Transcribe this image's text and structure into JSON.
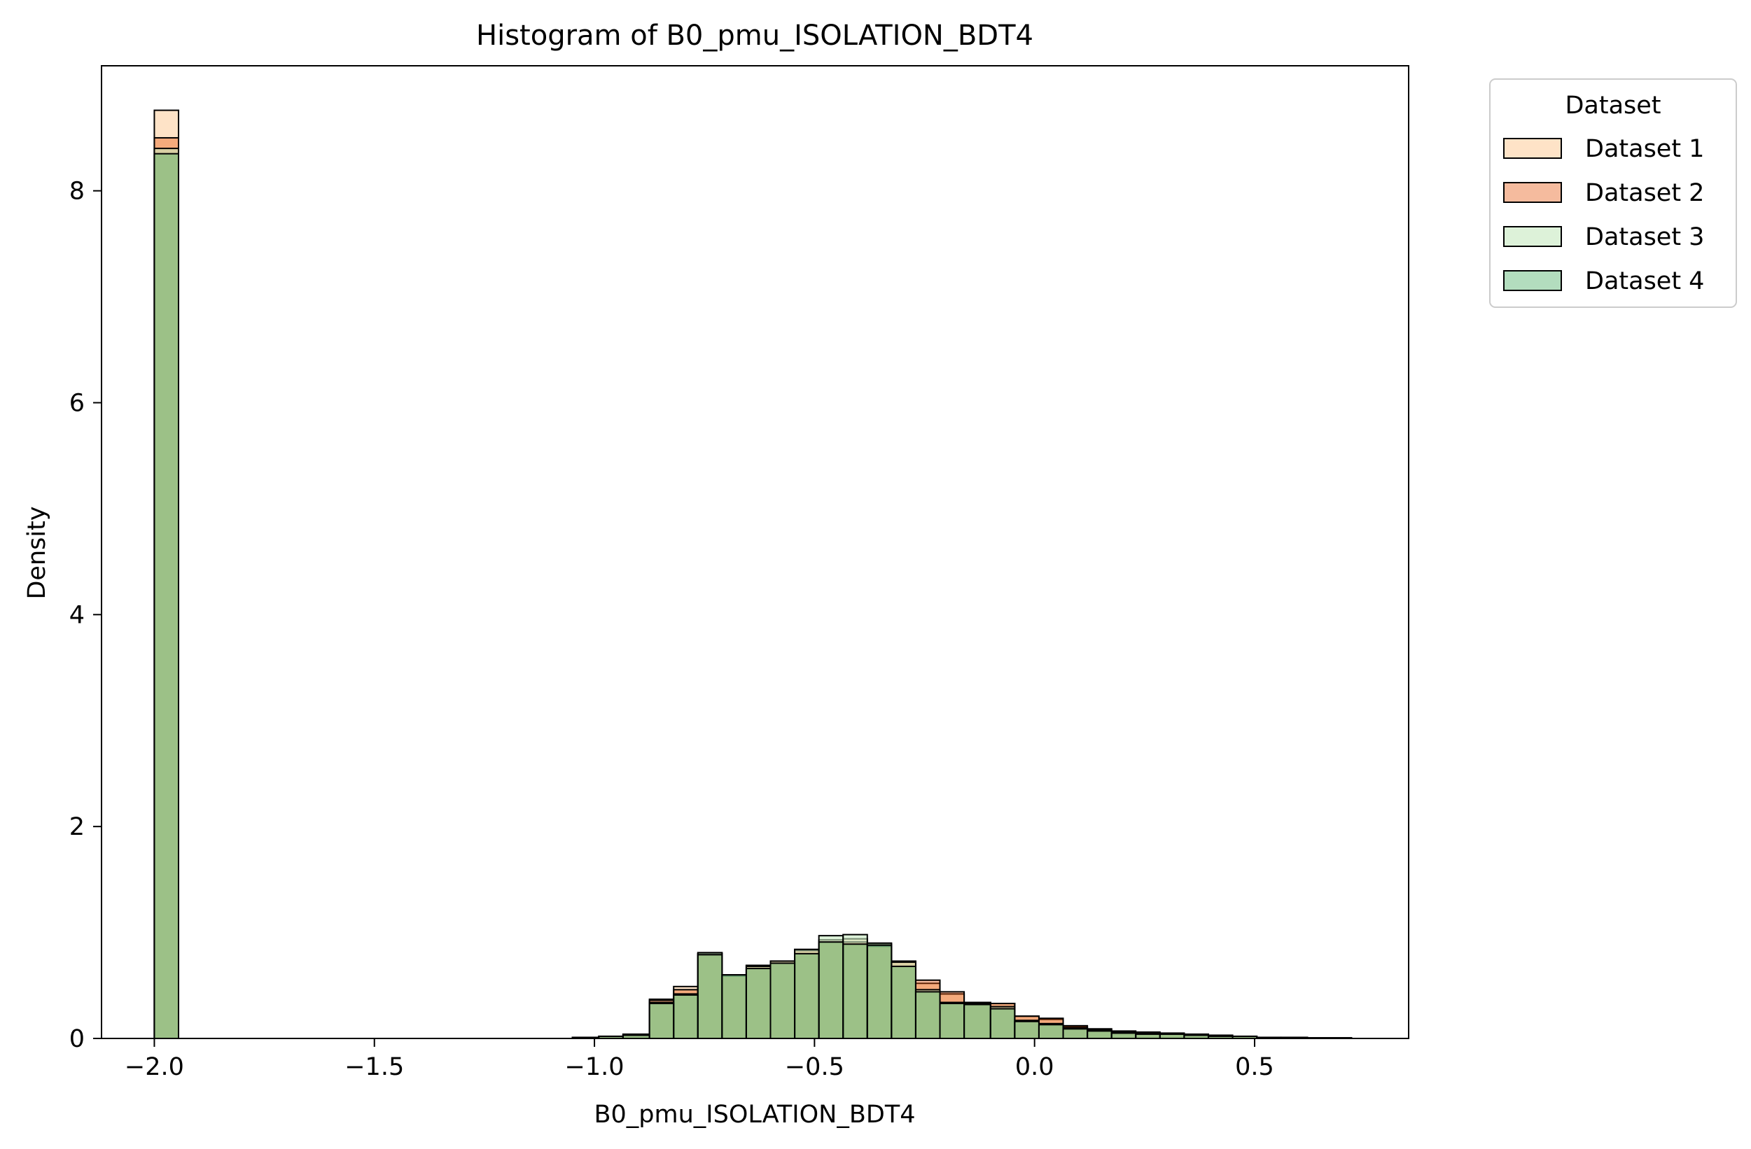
{
  "chart_data": {
    "type": "bar",
    "title": "Histogram of B0_pmu_ISOLATION_BDT4",
    "xlabel": "B0_pmu_ISOLATION_BDT4",
    "ylabel": "Density",
    "xlim": [
      -2.12,
      0.85
    ],
    "ylim": [
      0,
      9.18
    ],
    "xticks": [
      -2.0,
      -1.5,
      -1.0,
      -0.5,
      0.0,
      0.5
    ],
    "xtick_labels": [
      "−2.0",
      "−1.5",
      "−1.0",
      "−0.5",
      "0.0",
      "0.5"
    ],
    "yticks": [
      0,
      2,
      4,
      6,
      8
    ],
    "ytick_labels": [
      "0",
      "2",
      "4",
      "6",
      "8"
    ],
    "grid": false,
    "legend": {
      "title": "Dataset",
      "placement": "outside-top-right"
    },
    "series": [
      {
        "name": "Dataset 1",
        "color": "#fdd0a2",
        "opacity": 0.6,
        "bins": [
          [
            -2.0,
            -1.945,
            8.76
          ],
          [
            -1.05,
            -0.99,
            0.01
          ],
          [
            -0.99,
            -0.935,
            0.02
          ],
          [
            -0.935,
            -0.875,
            0.04
          ],
          [
            -0.875,
            -0.82,
            0.37
          ],
          [
            -0.82,
            -0.765,
            0.49
          ],
          [
            -0.765,
            -0.71,
            0.8
          ],
          [
            -0.71,
            -0.655,
            0.6
          ],
          [
            -0.655,
            -0.6,
            0.69
          ],
          [
            -0.6,
            -0.545,
            0.73
          ],
          [
            -0.545,
            -0.49,
            0.84
          ],
          [
            -0.49,
            -0.435,
            0.93
          ],
          [
            -0.435,
            -0.38,
            0.94
          ],
          [
            -0.38,
            -0.325,
            0.89
          ],
          [
            -0.325,
            -0.27,
            0.72
          ],
          [
            -0.27,
            -0.215,
            0.52
          ],
          [
            -0.215,
            -0.16,
            0.42
          ],
          [
            -0.16,
            -0.1,
            0.34
          ],
          [
            -0.1,
            -0.045,
            0.33
          ],
          [
            -0.045,
            0.01,
            0.21
          ],
          [
            0.01,
            0.065,
            0.18
          ],
          [
            0.065,
            0.12,
            0.11
          ],
          [
            0.12,
            0.175,
            0.09
          ],
          [
            0.175,
            0.23,
            0.06
          ],
          [
            0.23,
            0.285,
            0.05
          ],
          [
            0.285,
            0.34,
            0.05
          ],
          [
            0.34,
            0.395,
            0.04
          ],
          [
            0.395,
            0.45,
            0.03
          ],
          [
            0.45,
            0.505,
            0.02
          ],
          [
            0.505,
            0.56,
            0.01
          ],
          [
            0.56,
            0.62,
            0.01
          ],
          [
            0.62,
            0.72,
            0.005
          ]
        ]
      },
      {
        "name": "Dataset 2",
        "color": "#e6550d",
        "opacity": 0.4,
        "bins": [
          [
            -2.0,
            -1.945,
            8.5
          ],
          [
            -1.05,
            -0.99,
            0.01
          ],
          [
            -0.99,
            -0.935,
            0.02
          ],
          [
            -0.935,
            -0.875,
            0.04
          ],
          [
            -0.875,
            -0.82,
            0.36
          ],
          [
            -0.82,
            -0.765,
            0.46
          ],
          [
            -0.765,
            -0.71,
            0.8
          ],
          [
            -0.71,
            -0.655,
            0.59
          ],
          [
            -0.655,
            -0.6,
            0.69
          ],
          [
            -0.6,
            -0.545,
            0.73
          ],
          [
            -0.545,
            -0.49,
            0.83
          ],
          [
            -0.49,
            -0.435,
            0.91
          ],
          [
            -0.435,
            -0.38,
            0.91
          ],
          [
            -0.38,
            -0.325,
            0.87
          ],
          [
            -0.325,
            -0.27,
            0.73
          ],
          [
            -0.27,
            -0.215,
            0.55
          ],
          [
            -0.215,
            -0.16,
            0.44
          ],
          [
            -0.16,
            -0.1,
            0.34
          ],
          [
            -0.1,
            -0.045,
            0.33
          ],
          [
            -0.045,
            0.01,
            0.21
          ],
          [
            0.01,
            0.065,
            0.19
          ],
          [
            0.065,
            0.12,
            0.12
          ],
          [
            0.12,
            0.175,
            0.09
          ],
          [
            0.175,
            0.23,
            0.07
          ],
          [
            0.23,
            0.285,
            0.06
          ],
          [
            0.285,
            0.34,
            0.05
          ],
          [
            0.34,
            0.395,
            0.04
          ],
          [
            0.395,
            0.45,
            0.03
          ],
          [
            0.45,
            0.505,
            0.02
          ],
          [
            0.505,
            0.56,
            0.01
          ],
          [
            0.56,
            0.62,
            0.01
          ],
          [
            0.62,
            0.72,
            0.005
          ]
        ]
      },
      {
        "name": "Dataset 3",
        "color": "#c7e9c0",
        "opacity": 0.6,
        "bins": [
          [
            -2.0,
            -1.945,
            8.4
          ],
          [
            -1.05,
            -0.99,
            0.01
          ],
          [
            -0.99,
            -0.935,
            0.02
          ],
          [
            -0.935,
            -0.875,
            0.03
          ],
          [
            -0.875,
            -0.82,
            0.34
          ],
          [
            -0.82,
            -0.765,
            0.42
          ],
          [
            -0.765,
            -0.71,
            0.81
          ],
          [
            -0.71,
            -0.655,
            0.6
          ],
          [
            -0.655,
            -0.6,
            0.68
          ],
          [
            -0.6,
            -0.545,
            0.73
          ],
          [
            -0.545,
            -0.49,
            0.84
          ],
          [
            -0.49,
            -0.435,
            0.97
          ],
          [
            -0.435,
            -0.38,
            0.98
          ],
          [
            -0.38,
            -0.325,
            0.9
          ],
          [
            -0.325,
            -0.27,
            0.72
          ],
          [
            -0.27,
            -0.215,
            0.46
          ],
          [
            -0.215,
            -0.16,
            0.34
          ],
          [
            -0.16,
            -0.1,
            0.33
          ],
          [
            -0.1,
            -0.045,
            0.3
          ],
          [
            -0.045,
            0.01,
            0.17
          ],
          [
            0.01,
            0.065,
            0.14
          ],
          [
            0.065,
            0.12,
            0.1
          ],
          [
            0.12,
            0.175,
            0.08
          ],
          [
            0.175,
            0.23,
            0.06
          ],
          [
            0.23,
            0.285,
            0.05
          ],
          [
            0.285,
            0.34,
            0.04
          ],
          [
            0.34,
            0.395,
            0.03
          ],
          [
            0.395,
            0.45,
            0.03
          ],
          [
            0.45,
            0.505,
            0.02
          ],
          [
            0.505,
            0.56,
            0.01
          ],
          [
            0.56,
            0.62,
            0.01
          ],
          [
            0.62,
            0.72,
            0.005
          ]
        ]
      },
      {
        "name": "Dataset 4",
        "color": "#41ab5d",
        "opacity": 0.4,
        "bins": [
          [
            -2.0,
            -1.945,
            8.35
          ],
          [
            -1.05,
            -0.99,
            0.01
          ],
          [
            -0.99,
            -0.935,
            0.02
          ],
          [
            -0.935,
            -0.875,
            0.03
          ],
          [
            -0.875,
            -0.82,
            0.33
          ],
          [
            -0.82,
            -0.765,
            0.41
          ],
          [
            -0.765,
            -0.71,
            0.79
          ],
          [
            -0.71,
            -0.655,
            0.6
          ],
          [
            -0.655,
            -0.6,
            0.66
          ],
          [
            -0.6,
            -0.545,
            0.71
          ],
          [
            -0.545,
            -0.49,
            0.8
          ],
          [
            -0.49,
            -0.435,
            0.91
          ],
          [
            -0.435,
            -0.38,
            0.89
          ],
          [
            -0.38,
            -0.325,
            0.88
          ],
          [
            -0.325,
            -0.27,
            0.68
          ],
          [
            -0.27,
            -0.215,
            0.44
          ],
          [
            -0.215,
            -0.16,
            0.33
          ],
          [
            -0.16,
            -0.1,
            0.32
          ],
          [
            -0.1,
            -0.045,
            0.28
          ],
          [
            -0.045,
            0.01,
            0.16
          ],
          [
            0.01,
            0.065,
            0.13
          ],
          [
            0.065,
            0.12,
            0.09
          ],
          [
            0.12,
            0.175,
            0.07
          ],
          [
            0.175,
            0.23,
            0.05
          ],
          [
            0.23,
            0.285,
            0.04
          ],
          [
            0.285,
            0.34,
            0.04
          ],
          [
            0.34,
            0.395,
            0.03
          ],
          [
            0.395,
            0.45,
            0.02
          ],
          [
            0.45,
            0.505,
            0.02
          ],
          [
            0.505,
            0.56,
            0.01
          ],
          [
            0.56,
            0.62,
            0.01
          ],
          [
            0.62,
            0.72,
            0.005
          ]
        ]
      }
    ]
  }
}
